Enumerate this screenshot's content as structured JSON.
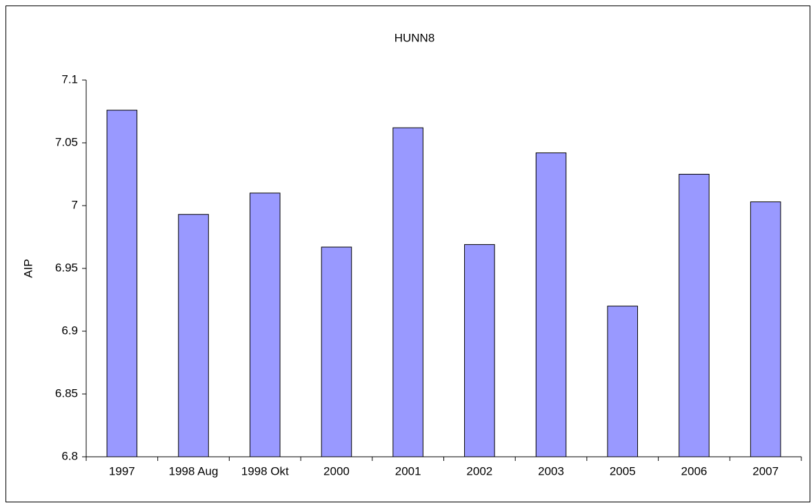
{
  "chart_data": {
    "type": "bar",
    "title": "HUNN8",
    "y_label": "AIP",
    "categories": [
      "1997",
      "1998 Aug",
      "1998 Okt",
      "2000",
      "2001",
      "2002",
      "2003",
      "2005",
      "2006",
      "2007"
    ],
    "values": [
      7.076,
      6.993,
      7.01,
      6.967,
      7.062,
      6.969,
      7.042,
      6.92,
      7.025,
      7.003
    ],
    "color": "#9999ff",
    "ylim": [
      6.8,
      7.1
    ],
    "yticks": [
      6.8,
      6.85,
      6.9,
      6.95,
      7,
      7.05,
      7.1
    ],
    "grid": false
  }
}
